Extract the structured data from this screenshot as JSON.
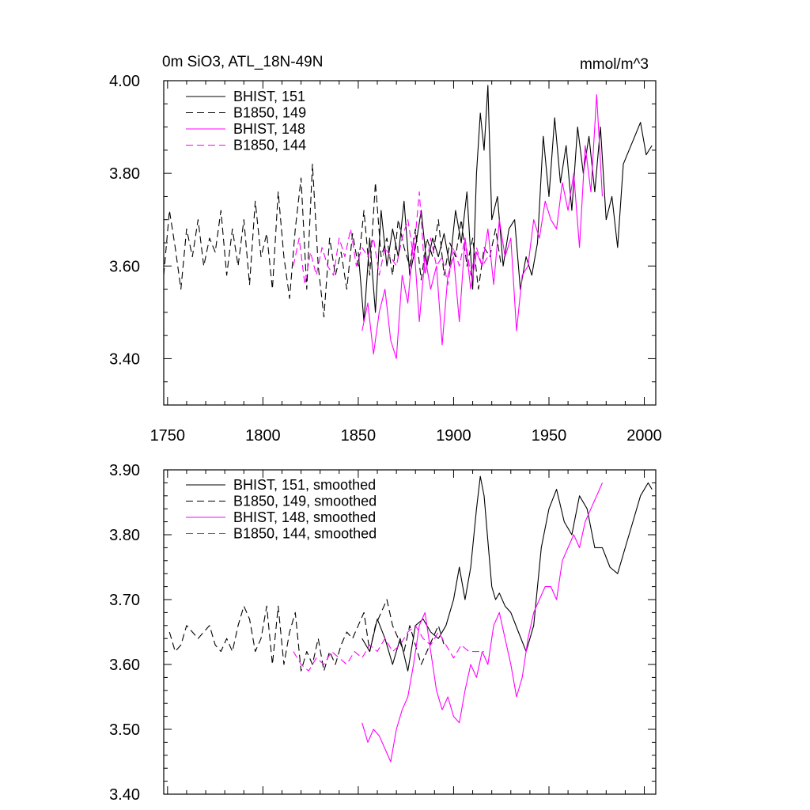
{
  "chart_data": [
    {
      "type": "line",
      "title": "0m SiO3, ATL_18N-49N",
      "units": "mmol/m^3",
      "xlim": [
        1748,
        2006
      ],
      "ylim": [
        3.3,
        4.0
      ],
      "x_ticks": [
        "1750",
        "1800",
        "1850",
        "1900",
        "1950",
        "2000"
      ],
      "y_ticks": [
        "3.40",
        "3.60",
        "3.80",
        "4.00"
      ],
      "series": [
        {
          "name": "BHIST, 151",
          "color": "#000000",
          "dash": "solid",
          "x": [
            1850,
            1853,
            1856,
            1859,
            1862,
            1865,
            1868,
            1871,
            1874,
            1877,
            1880,
            1883,
            1886,
            1889,
            1892,
            1895,
            1898,
            1901,
            1904,
            1907,
            1910,
            1912,
            1914,
            1916,
            1918,
            1920,
            1923,
            1926,
            1929,
            1932,
            1935,
            1938,
            1941,
            1944,
            1947,
            1950,
            1953,
            1956,
            1959,
            1962,
            1965,
            1968,
            1971,
            1974,
            1977,
            1980,
            1983,
            1986,
            1989,
            1992,
            1995,
            1998,
            2001,
            2004
          ],
          "values": [
            3.63,
            3.48,
            3.66,
            3.5,
            3.72,
            3.6,
            3.68,
            3.62,
            3.74,
            3.58,
            3.64,
            3.72,
            3.6,
            3.66,
            3.62,
            3.67,
            3.6,
            3.72,
            3.65,
            3.76,
            3.55,
            3.8,
            3.93,
            3.85,
            3.99,
            3.7,
            3.75,
            3.6,
            3.68,
            3.7,
            3.55,
            3.62,
            3.58,
            3.65,
            3.88,
            3.75,
            3.92,
            3.78,
            3.86,
            3.72,
            3.9,
            3.8,
            3.88,
            3.76,
            3.9,
            3.7,
            3.75,
            3.64,
            3.82,
            3.85,
            3.88,
            3.91,
            3.84,
            3.86
          ]
        },
        {
          "name": "B1850, 149",
          "color": "#000000",
          "dash": "dash",
          "x": [
            1748,
            1751,
            1754,
            1757,
            1760,
            1763,
            1766,
            1769,
            1772,
            1775,
            1778,
            1781,
            1784,
            1787,
            1790,
            1793,
            1796,
            1799,
            1802,
            1805,
            1808,
            1811,
            1814,
            1817,
            1820,
            1823,
            1826,
            1829,
            1832,
            1835,
            1838,
            1841,
            1844,
            1847,
            1850,
            1853,
            1856,
            1859,
            1862,
            1865,
            1868,
            1871,
            1874,
            1877,
            1880,
            1883,
            1886,
            1889,
            1892,
            1895,
            1898,
            1901,
            1904,
            1907,
            1910,
            1913,
            1916,
            1919,
            1922,
            1925
          ],
          "values": [
            3.58,
            3.72,
            3.64,
            3.55,
            3.68,
            3.62,
            3.7,
            3.6,
            3.66,
            3.63,
            3.72,
            3.58,
            3.68,
            3.6,
            3.7,
            3.56,
            3.74,
            3.62,
            3.67,
            3.55,
            3.76,
            3.62,
            3.53,
            3.68,
            3.79,
            3.55,
            3.82,
            3.6,
            3.49,
            3.66,
            3.58,
            3.63,
            3.55,
            3.67,
            3.6,
            3.72,
            3.58,
            3.78,
            3.62,
            3.66,
            3.58,
            3.7,
            3.64,
            3.6,
            3.68,
            3.57,
            3.66,
            3.62,
            3.7,
            3.58,
            3.65,
            3.62,
            3.7,
            3.6,
            3.66,
            3.55,
            3.64,
            3.62,
            3.68,
            3.6
          ]
        },
        {
          "name": "BHIST, 148",
          "color": "#ff00ff",
          "dash": "solid",
          "x": [
            1852,
            1855,
            1858,
            1861,
            1864,
            1867,
            1870,
            1873,
            1876,
            1879,
            1882,
            1885,
            1888,
            1891,
            1894,
            1897,
            1900,
            1903,
            1906,
            1909,
            1912,
            1915,
            1918,
            1921,
            1924,
            1927,
            1930,
            1933,
            1936,
            1939,
            1942,
            1945,
            1948,
            1951,
            1954,
            1957,
            1960,
            1963,
            1966,
            1969,
            1972,
            1975,
            1978
          ],
          "values": [
            3.46,
            3.52,
            3.41,
            3.5,
            3.55,
            3.44,
            3.4,
            3.58,
            3.52,
            3.66,
            3.48,
            3.62,
            3.55,
            3.6,
            3.43,
            3.58,
            3.62,
            3.48,
            3.66,
            3.55,
            3.63,
            3.6,
            3.68,
            3.56,
            3.7,
            3.62,
            3.66,
            3.46,
            3.58,
            3.6,
            3.7,
            3.66,
            3.74,
            3.7,
            3.68,
            3.78,
            3.72,
            3.8,
            3.64,
            3.86,
            3.76,
            3.97,
            3.75
          ]
        },
        {
          "name": "B1850, 144",
          "color": "#ff00ff",
          "dash": "dash",
          "x": [
            1816,
            1819,
            1822,
            1825,
            1828,
            1831,
            1834,
            1837,
            1840,
            1843,
            1846,
            1849,
            1852,
            1855,
            1858,
            1861,
            1864,
            1867,
            1870,
            1873,
            1876,
            1879,
            1882,
            1885,
            1888,
            1891,
            1894,
            1897,
            1900,
            1903,
            1906,
            1909,
            1912,
            1915,
            1918
          ],
          "values": [
            3.6,
            3.66,
            3.56,
            3.63,
            3.58,
            3.64,
            3.6,
            3.58,
            3.66,
            3.62,
            3.68,
            3.6,
            3.64,
            3.62,
            3.66,
            3.58,
            3.64,
            3.62,
            3.6,
            3.66,
            3.7,
            3.62,
            3.76,
            3.58,
            3.66,
            3.6,
            3.62,
            3.56,
            3.64,
            3.6,
            3.66,
            3.58,
            3.64,
            3.6,
            3.62
          ]
        }
      ]
    },
    {
      "type": "line",
      "title": "",
      "units": "",
      "xlim": [
        1748,
        2006
      ],
      "ylim": [
        3.4,
        3.9
      ],
      "x_ticks": [],
      "y_ticks": [
        "3.40",
        "3.50",
        "3.60",
        "3.70",
        "3.80",
        "3.90"
      ],
      "series": [
        {
          "name": "BHIST, 151, smoothed",
          "color": "#000000",
          "dash": "solid",
          "x": [
            1852,
            1856,
            1860,
            1864,
            1868,
            1872,
            1876,
            1880,
            1884,
            1888,
            1892,
            1896,
            1900,
            1903,
            1906,
            1909,
            1912,
            1914,
            1916,
            1918,
            1920,
            1922,
            1924,
            1927,
            1930,
            1934,
            1938,
            1942,
            1946,
            1950,
            1954,
            1958,
            1962,
            1966,
            1970,
            1974,
            1978,
            1982,
            1986,
            1990,
            1994,
            1998,
            2002,
            2004
          ],
          "values": [
            3.64,
            3.62,
            3.67,
            3.64,
            3.6,
            3.64,
            3.59,
            3.66,
            3.67,
            3.65,
            3.64,
            3.66,
            3.7,
            3.75,
            3.7,
            3.75,
            3.84,
            3.89,
            3.86,
            3.79,
            3.72,
            3.7,
            3.71,
            3.69,
            3.68,
            3.65,
            3.62,
            3.66,
            3.78,
            3.84,
            3.87,
            3.82,
            3.8,
            3.86,
            3.84,
            3.78,
            3.78,
            3.75,
            3.74,
            3.78,
            3.82,
            3.86,
            3.88,
            3.87
          ]
        },
        {
          "name": "B1850, 149, smoothed",
          "color": "#000000",
          "dash": "dash",
          "x": [
            1751,
            1754,
            1757,
            1760,
            1763,
            1766,
            1769,
            1772,
            1775,
            1778,
            1781,
            1784,
            1787,
            1790,
            1793,
            1796,
            1799,
            1802,
            1805,
            1808,
            1811,
            1814,
            1817,
            1820,
            1823,
            1826,
            1829,
            1832,
            1835,
            1838,
            1841,
            1844,
            1847,
            1850,
            1853,
            1856,
            1859,
            1862,
            1865,
            1868,
            1871,
            1874,
            1877,
            1880,
            1883,
            1886,
            1889,
            1892,
            1895
          ],
          "values": [
            3.65,
            3.62,
            3.63,
            3.66,
            3.65,
            3.64,
            3.65,
            3.66,
            3.63,
            3.62,
            3.64,
            3.62,
            3.66,
            3.69,
            3.67,
            3.62,
            3.64,
            3.69,
            3.6,
            3.69,
            3.6,
            3.65,
            3.68,
            3.59,
            3.62,
            3.6,
            3.64,
            3.59,
            3.62,
            3.6,
            3.63,
            3.65,
            3.64,
            3.66,
            3.68,
            3.62,
            3.66,
            3.68,
            3.7,
            3.66,
            3.64,
            3.62,
            3.66,
            3.63,
            3.6,
            3.62,
            3.64,
            3.66,
            3.63
          ]
        },
        {
          "name": "BHIST, 148, smoothed",
          "color": "#ff00ff",
          "dash": "solid",
          "x": [
            1852,
            1855,
            1858,
            1861,
            1864,
            1867,
            1870,
            1873,
            1876,
            1879,
            1882,
            1885,
            1888,
            1891,
            1894,
            1897,
            1900,
            1903,
            1906,
            1909,
            1912,
            1915,
            1918,
            1921,
            1924,
            1927,
            1930,
            1933,
            1936,
            1939,
            1942,
            1945,
            1948,
            1951,
            1954,
            1957,
            1960,
            1963,
            1966,
            1969,
            1972,
            1975,
            1978
          ],
          "values": [
            3.51,
            3.48,
            3.5,
            3.49,
            3.47,
            3.45,
            3.5,
            3.53,
            3.55,
            3.6,
            3.66,
            3.68,
            3.62,
            3.56,
            3.53,
            3.55,
            3.52,
            3.51,
            3.56,
            3.6,
            3.58,
            3.62,
            3.6,
            3.66,
            3.68,
            3.64,
            3.6,
            3.55,
            3.58,
            3.64,
            3.68,
            3.7,
            3.72,
            3.72,
            3.7,
            3.76,
            3.78,
            3.8,
            3.78,
            3.82,
            3.84,
            3.86,
            3.88
          ]
        },
        {
          "name": "B1850, 144, smoothed",
          "color": "#ff00ff",
          "dash": "dash",
          "x": [
            1816,
            1820,
            1824,
            1828,
            1832,
            1836,
            1840,
            1844,
            1848,
            1852,
            1856,
            1860,
            1864,
            1868,
            1872,
            1876,
            1880,
            1884,
            1888,
            1892,
            1896,
            1900,
            1904,
            1908,
            1912,
            1916
          ],
          "values": [
            3.62,
            3.6,
            3.59,
            3.61,
            3.6,
            3.62,
            3.61,
            3.6,
            3.62,
            3.61,
            3.63,
            3.62,
            3.64,
            3.62,
            3.63,
            3.65,
            3.66,
            3.64,
            3.63,
            3.65,
            3.63,
            3.61,
            3.63,
            3.62,
            3.62,
            3.62
          ]
        }
      ]
    }
  ]
}
